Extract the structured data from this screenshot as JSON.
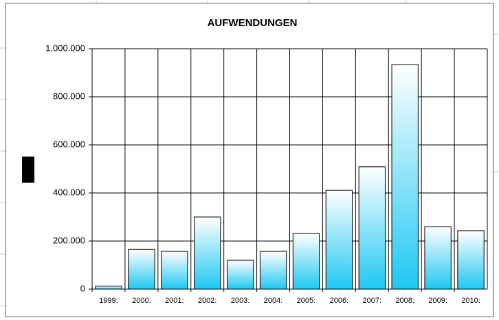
{
  "chart_data": {
    "type": "bar",
    "title": "AUFWENDUNGEN",
    "categories": [
      "1999:",
      "2000:",
      "2001:",
      "2002:",
      "2003:",
      "2004:",
      "2005:",
      "2006:",
      "2007:",
      "2008:",
      "2009:",
      "2010:"
    ],
    "values": [
      12000,
      165000,
      157000,
      300000,
      120000,
      157000,
      231000,
      411000,
      509000,
      934000,
      260000,
      243000
    ],
    "color": "#1ec8f2",
    "ylim": [
      0,
      1000000
    ],
    "yticks": [
      0,
      {
        "value": 200000,
        "label": "200.000"
      },
      {
        "value": 400000,
        "label": "400.000"
      },
      {
        "value": 600000,
        "label": "600.000"
      },
      {
        "value": 800000,
        "label": "800.000"
      },
      {
        "value": 1000000,
        "label": "1.000.000"
      }
    ],
    "grid": true
  }
}
